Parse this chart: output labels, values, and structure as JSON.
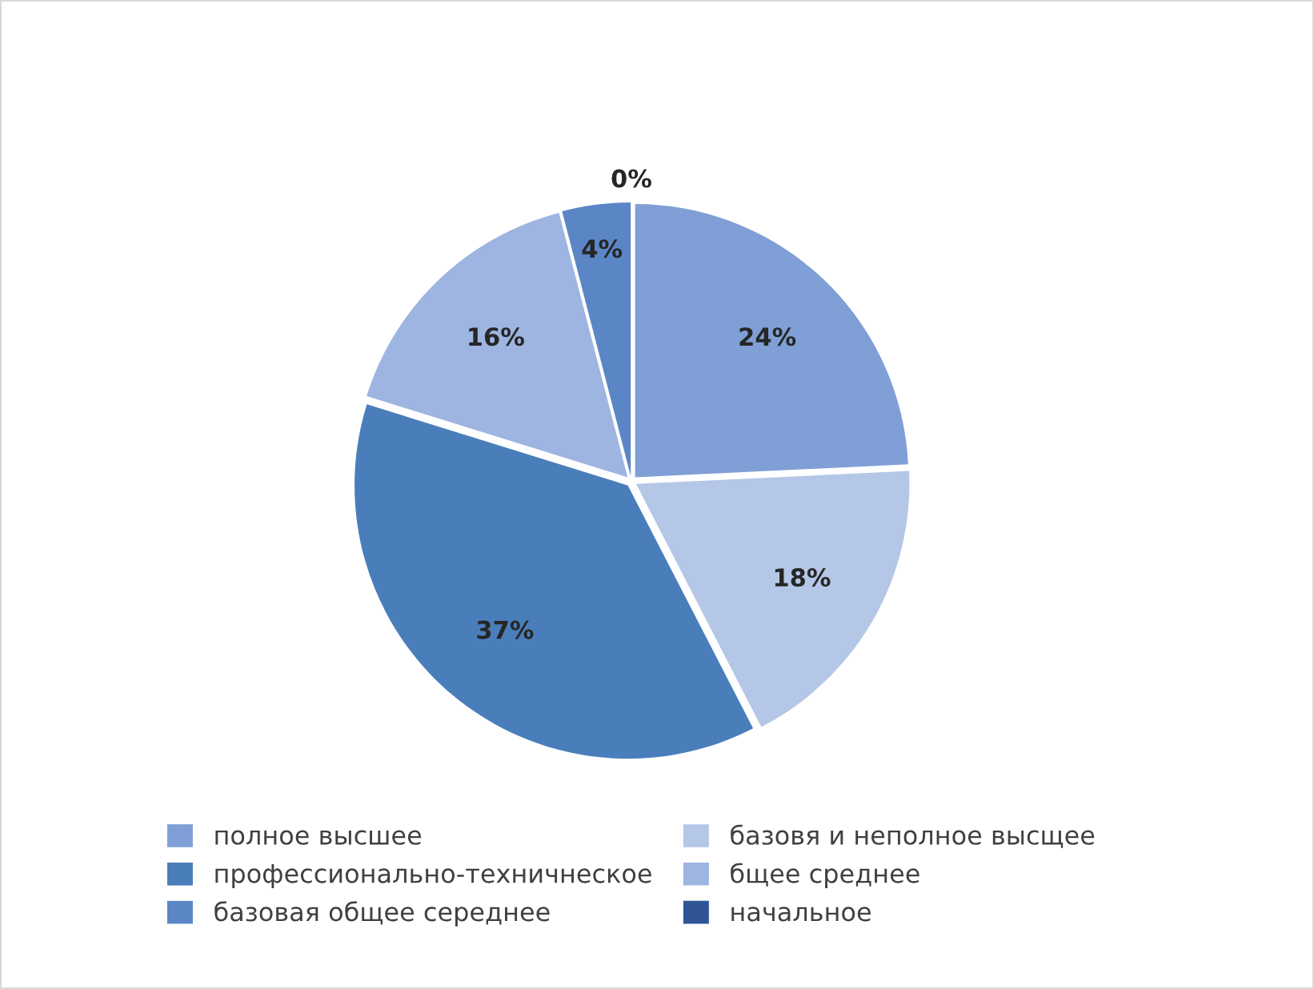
{
  "chart_data": {
    "type": "pie",
    "categories": [
      "полное высшее",
      "базовя и неполное высщее",
      "профессионально-техничнеское",
      "бщее среднее",
      "базовая общее середнее",
      "начальное"
    ],
    "values": [
      24,
      18,
      37,
      16,
      4,
      0
    ],
    "value_labels": [
      "24%",
      "18%",
      "37%",
      "16%",
      "4%",
      "0%"
    ],
    "colors": [
      "#7f9fd6",
      "#b4c7e7",
      "#4a7ebb",
      "#9db5e0",
      "#5b86c6",
      "#2f5597"
    ],
    "legend": "bottom"
  }
}
